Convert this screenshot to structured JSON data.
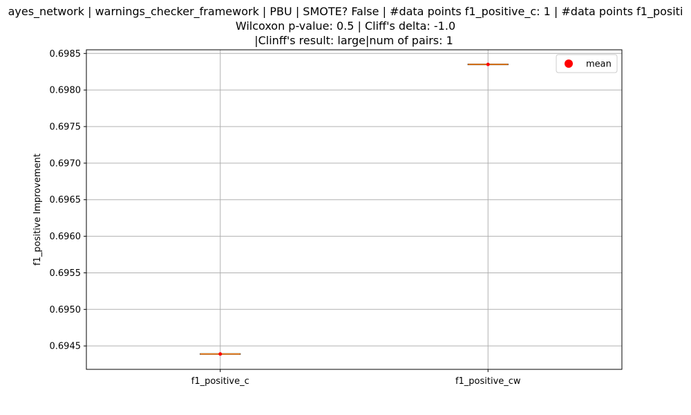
{
  "chart_data": {
    "type": "box",
    "title_lines": [
      "ayes_network | warnings_checker_framework | PBU | SMOTE? False | #data points f1_positive_c: 1 | #data points f1_positi",
      "Wilcoxon p-value: 0.5 | Cliff's delta: -1.0",
      "|Clinff's result: large|num of pairs: 1"
    ],
    "xlabel": "",
    "ylabel": "f1_positive Improvement",
    "categories": [
      "f1_positive_c",
      "f1_positive_cw"
    ],
    "values": [
      0.69439,
      0.69835
    ],
    "means": [
      0.69439,
      0.69835
    ],
    "ylim": [
      0.69418,
      0.69855
    ],
    "yticks": [
      0.6945,
      0.695,
      0.6955,
      0.696,
      0.6965,
      0.697,
      0.6975,
      0.698,
      0.6985
    ],
    "ytick_labels": [
      "0.6945",
      "0.6950",
      "0.6955",
      "0.6960",
      "0.6965",
      "0.6970",
      "0.6975",
      "0.6980",
      "0.6985"
    ],
    "grid": true,
    "legend": {
      "placement": "top-right",
      "entries": [
        "mean"
      ]
    },
    "colors": {
      "mean_marker": "#ff0000",
      "median_line": "#ff7f0e",
      "box_edge": "#000000",
      "grid": "#b0b0b0"
    }
  }
}
